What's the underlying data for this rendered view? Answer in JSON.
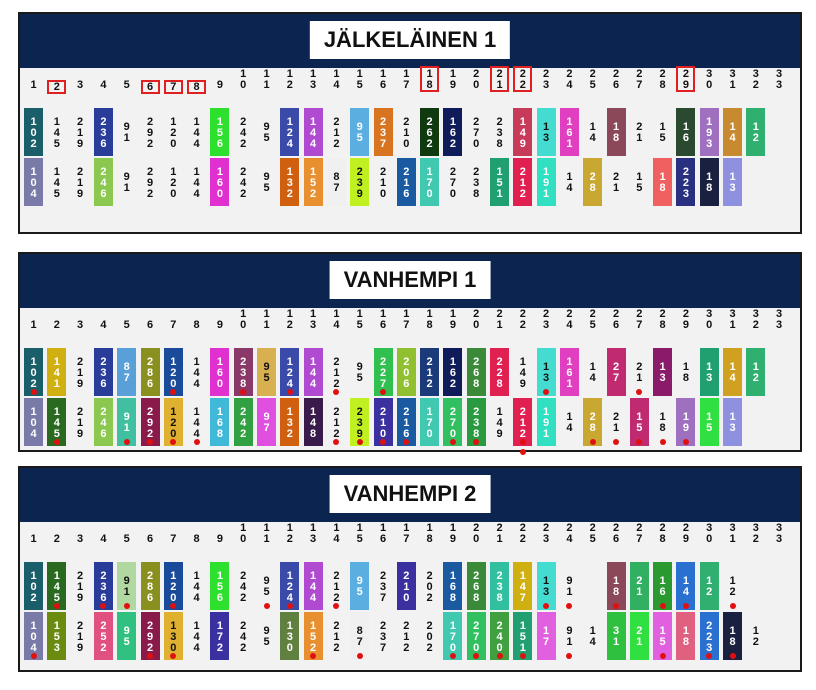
{
  "panels": [
    {
      "title": "JÄLKELÄINEN 1",
      "headers": [
        "1",
        "2",
        "3",
        "4",
        "5",
        "6",
        "7",
        "8",
        "9",
        "10",
        "11",
        "12",
        "13",
        "14",
        "15",
        "16",
        "17",
        "18",
        "19",
        "20",
        "21",
        "22",
        "23",
        "24",
        "25",
        "26",
        "27",
        "28",
        "29",
        "30",
        "31",
        "32",
        "33"
      ],
      "boxed": [
        2,
        6,
        7,
        8,
        18,
        21,
        22,
        29
      ],
      "row1": [
        {
          "t": "102",
          "c": "#1a5e6a"
        },
        {
          "t": "145",
          "c": ""
        },
        {
          "t": "219",
          "c": ""
        },
        {
          "t": "236",
          "c": "#2a3c9a"
        },
        {
          "t": "91",
          "c": ""
        },
        {
          "t": "292",
          "c": ""
        },
        {
          "t": "120",
          "c": ""
        },
        {
          "t": "144",
          "c": ""
        },
        {
          "t": "156",
          "c": "#2ee02e"
        },
        {
          "t": "242",
          "c": ""
        },
        {
          "t": "95",
          "c": ""
        },
        {
          "t": "124",
          "c": "#3a4aa8"
        },
        {
          "t": "144",
          "c": "#b04ad0"
        },
        {
          "t": "212",
          "c": ""
        },
        {
          "t": "95",
          "c": "#5aaee0"
        },
        {
          "t": "237",
          "c": "#d87420"
        },
        {
          "t": "210",
          "c": ""
        },
        {
          "t": "262",
          "c": "#0f3a10"
        },
        {
          "t": "162",
          "c": "#101c5a"
        },
        {
          "t": "270",
          "c": ""
        },
        {
          "t": "238",
          "c": ""
        },
        {
          "t": "149",
          "c": "#c83a5a"
        },
        {
          "t": "13",
          "c": "#44dcd0"
        },
        {
          "t": "161",
          "c": "#e040c0"
        },
        {
          "t": "14",
          "c": ""
        },
        {
          "t": "18",
          "c": "#8a4858"
        },
        {
          "t": "21",
          "c": ""
        },
        {
          "t": "15",
          "c": ""
        },
        {
          "t": "16",
          "c": "#2a4a30"
        },
        {
          "t": "193",
          "c": "#a070c0"
        },
        {
          "t": "14",
          "c": "#c88a30"
        },
        {
          "t": "12",
          "c": "#30b070"
        },
        {
          "t": "",
          "c": ""
        }
      ],
      "row2": [
        {
          "t": "104",
          "c": "#7a7aa8"
        },
        {
          "t": "145",
          "c": ""
        },
        {
          "t": "219",
          "c": ""
        },
        {
          "t": "246",
          "c": "#8ac850"
        },
        {
          "t": "91",
          "c": ""
        },
        {
          "t": "292",
          "c": ""
        },
        {
          "t": "120",
          "c": ""
        },
        {
          "t": "144",
          "c": ""
        },
        {
          "t": "160",
          "c": "#e030d0"
        },
        {
          "t": "242",
          "c": ""
        },
        {
          "t": "95",
          "c": ""
        },
        {
          "t": "132",
          "c": "#d06010"
        },
        {
          "t": "152",
          "c": "#e89030"
        },
        {
          "t": "87",
          "c": "#f0f0f0"
        },
        {
          "t": "239",
          "c": "#c0f020"
        },
        {
          "t": "210",
          "c": ""
        },
        {
          "t": "216",
          "c": "#1a5aa0"
        },
        {
          "t": "170",
          "c": "#40c8b0"
        },
        {
          "t": "270",
          "c": ""
        },
        {
          "t": "238",
          "c": ""
        },
        {
          "t": "151",
          "c": "#20a070"
        },
        {
          "t": "212",
          "c": "#e02050"
        },
        {
          "t": "191",
          "c": "#30e0c0"
        },
        {
          "t": "14",
          "c": ""
        },
        {
          "t": "28",
          "c": "#c8a830"
        },
        {
          "t": "21",
          "c": ""
        },
        {
          "t": "15",
          "c": ""
        },
        {
          "t": "18",
          "c": "#f06060"
        },
        {
          "t": "223",
          "c": "#2a3080"
        },
        {
          "t": "18",
          "c": "#1a2040"
        },
        {
          "t": "13",
          "c": "#9090e0"
        },
        {
          "t": "",
          "c": ""
        },
        {
          "t": "",
          "c": ""
        }
      ],
      "dots1": [],
      "dots2": []
    },
    {
      "title": "VANHEMPI 1",
      "headers": [
        "1",
        "2",
        "3",
        "4",
        "5",
        "6",
        "7",
        "8",
        "9",
        "10",
        "11",
        "12",
        "13",
        "14",
        "15",
        "16",
        "17",
        "18",
        "19",
        "20",
        "21",
        "22",
        "23",
        "24",
        "25",
        "26",
        "27",
        "28",
        "29",
        "30",
        "31",
        "32",
        "33"
      ],
      "boxed": [],
      "row1": [
        {
          "t": "102",
          "c": "#1a5e6a"
        },
        {
          "t": "141",
          "c": "#d0b010"
        },
        {
          "t": "219",
          "c": ""
        },
        {
          "t": "236",
          "c": "#2a3c9a"
        },
        {
          "t": "87",
          "c": "#5aa0d8"
        },
        {
          "t": "286",
          "c": "#8a9020"
        },
        {
          "t": "120",
          "c": "#1a4a9a"
        },
        {
          "t": "144",
          "c": ""
        },
        {
          "t": "160",
          "c": "#e030d0"
        },
        {
          "t": "238",
          "c": "#8a3868"
        },
        {
          "t": "95",
          "c": "#d8b050"
        },
        {
          "t": "124",
          "c": "#3a4aa8"
        },
        {
          "t": "144",
          "c": "#b04ad0"
        },
        {
          "t": "212",
          "c": ""
        },
        {
          "t": "95",
          "c": ""
        },
        {
          "t": "227",
          "c": "#30c050"
        },
        {
          "t": "206",
          "c": "#90c030"
        },
        {
          "t": "212",
          "c": "#1a3a7a"
        },
        {
          "t": "162",
          "c": "#101c5a"
        },
        {
          "t": "268",
          "c": "#3a8a3a"
        },
        {
          "t": "228",
          "c": "#e02050"
        },
        {
          "t": "149",
          "c": ""
        },
        {
          "t": "13",
          "c": "#44dcd0"
        },
        {
          "t": "161",
          "c": "#e040c0"
        },
        {
          "t": "14",
          "c": ""
        },
        {
          "t": "27",
          "c": "#c02a70"
        },
        {
          "t": "21",
          "c": ""
        },
        {
          "t": "13",
          "c": "#8a1a6a"
        },
        {
          "t": "18",
          "c": ""
        },
        {
          "t": "13",
          "c": "#20a070"
        },
        {
          "t": "14",
          "c": "#d0a020"
        },
        {
          "t": "12",
          "c": "#30b070"
        },
        {
          "t": "",
          "c": ""
        }
      ],
      "row2": [
        {
          "t": "104",
          "c": "#7a7aa8"
        },
        {
          "t": "145",
          "c": "#2a6a20"
        },
        {
          "t": "219",
          "c": ""
        },
        {
          "t": "246",
          "c": "#8ac850"
        },
        {
          "t": "91",
          "c": "#40c0a0"
        },
        {
          "t": "292",
          "c": "#8a1a4a"
        },
        {
          "t": "120",
          "c": "#e0b030"
        },
        {
          "t": "144",
          "c": ""
        },
        {
          "t": "168",
          "c": "#40b8d8"
        },
        {
          "t": "242",
          "c": "#30a040"
        },
        {
          "t": "97",
          "c": "#e050e0"
        },
        {
          "t": "132",
          "c": "#d06010"
        },
        {
          "t": "148",
          "c": "#3a1a4a"
        },
        {
          "t": "212",
          "c": ""
        },
        {
          "t": "239",
          "c": "#c0f020"
        },
        {
          "t": "210",
          "c": "#3a30a0"
        },
        {
          "t": "216",
          "c": "#1a5aa0"
        },
        {
          "t": "170",
          "c": "#40c8b0"
        },
        {
          "t": "270",
          "c": "#30c060"
        },
        {
          "t": "238",
          "c": "#2a9a40"
        },
        {
          "t": "149",
          "c": ""
        },
        {
          "t": "212",
          "c": "#e02050"
        },
        {
          "t": "191",
          "c": "#30e0c0"
        },
        {
          "t": "14",
          "c": ""
        },
        {
          "t": "28",
          "c": "#c8a830"
        },
        {
          "t": "21",
          "c": ""
        },
        {
          "t": "15",
          "c": "#c02a70"
        },
        {
          "t": "18",
          "c": ""
        },
        {
          "t": "19",
          "c": "#a070c0"
        },
        {
          "t": "15",
          "c": "#30e040"
        },
        {
          "t": "13",
          "c": "#9090e0"
        },
        {
          "t": "",
          "c": ""
        },
        {
          "t": "",
          "c": ""
        }
      ],
      "dots1": [
        0,
        6,
        9,
        11,
        13,
        15,
        22,
        26
      ],
      "dots2": [
        1,
        4,
        5,
        6,
        7,
        13,
        14,
        15,
        16,
        18,
        19,
        21,
        24,
        25,
        26,
        27,
        28
      ],
      "dots3": [
        21
      ]
    },
    {
      "title": "VANHEMPI 2",
      "headers": [
        "1",
        "2",
        "3",
        "4",
        "5",
        "6",
        "7",
        "8",
        "9",
        "10",
        "11",
        "12",
        "13",
        "14",
        "15",
        "16",
        "17",
        "18",
        "19",
        "20",
        "21",
        "22",
        "23",
        "24",
        "25",
        "26",
        "27",
        "28",
        "29",
        "30",
        "31",
        "32",
        "33"
      ],
      "boxed": [],
      "row1": [
        {
          "t": "102",
          "c": "#1a5e6a"
        },
        {
          "t": "145",
          "c": "#2a6a20"
        },
        {
          "t": "219",
          "c": ""
        },
        {
          "t": "236",
          "c": "#2a3c9a"
        },
        {
          "t": "91",
          "c": "#b0d8a0"
        },
        {
          "t": "286",
          "c": "#8a9020"
        },
        {
          "t": "120",
          "c": "#1a4a9a"
        },
        {
          "t": "144",
          "c": ""
        },
        {
          "t": "156",
          "c": "#2ee02e"
        },
        {
          "t": "242",
          "c": ""
        },
        {
          "t": "95",
          "c": ""
        },
        {
          "t": "124",
          "c": "#3a4aa8"
        },
        {
          "t": "144",
          "c": "#b04ad0"
        },
        {
          "t": "212",
          "c": ""
        },
        {
          "t": "95",
          "c": "#5aaee0"
        },
        {
          "t": "237",
          "c": ""
        },
        {
          "t": "210",
          "c": "#3a30a0"
        },
        {
          "t": "202",
          "c": ""
        },
        {
          "t": "168",
          "c": "#1a5aa0"
        },
        {
          "t": "268",
          "c": "#3a8a3a"
        },
        {
          "t": "238",
          "c": "#30c0a0"
        },
        {
          "t": "147",
          "c": "#d0b010"
        },
        {
          "t": "13",
          "c": "#44dcd0"
        },
        {
          "t": "91",
          "c": ""
        },
        {
          "t": "",
          "c": ""
        },
        {
          "t": "18",
          "c": "#8a4858"
        },
        {
          "t": "21",
          "c": "#30b060"
        },
        {
          "t": "16",
          "c": "#2a9a30"
        },
        {
          "t": "14",
          "c": "#2a70d0"
        },
        {
          "t": "12",
          "c": "#30b070"
        },
        {
          "t": "12",
          "c": ""
        },
        {
          "t": "",
          "c": ""
        },
        {
          "t": "",
          "c": ""
        }
      ],
      "row2": [
        {
          "t": "104",
          "c": "#7a7aa8"
        },
        {
          "t": "153",
          "c": "#6a8a10"
        },
        {
          "t": "219",
          "c": ""
        },
        {
          "t": "252",
          "c": "#e05080"
        },
        {
          "t": "95",
          "c": "#30c080"
        },
        {
          "t": "292",
          "c": "#8a1a4a"
        },
        {
          "t": "130",
          "c": "#e0b030"
        },
        {
          "t": "144",
          "c": ""
        },
        {
          "t": "172",
          "c": "#3a30a0"
        },
        {
          "t": "242",
          "c": ""
        },
        {
          "t": "95",
          "c": ""
        },
        {
          "t": "130",
          "c": "#608040"
        },
        {
          "t": "152",
          "c": "#e89030"
        },
        {
          "t": "212",
          "c": ""
        },
        {
          "t": "87",
          "c": "#f0f0f0"
        },
        {
          "t": "237",
          "c": ""
        },
        {
          "t": "212",
          "c": ""
        },
        {
          "t": "202",
          "c": ""
        },
        {
          "t": "170",
          "c": "#40c8b0"
        },
        {
          "t": "270",
          "c": "#30c060"
        },
        {
          "t": "240",
          "c": "#40a040"
        },
        {
          "t": "151",
          "c": "#20a070"
        },
        {
          "t": "17",
          "c": "#e060e0"
        },
        {
          "t": "91",
          "c": ""
        },
        {
          "t": "14",
          "c": ""
        },
        {
          "t": "31",
          "c": "#30c040"
        },
        {
          "t": "21",
          "c": "#30e040"
        },
        {
          "t": "15",
          "c": "#e060e0"
        },
        {
          "t": "18",
          "c": "#e06080"
        },
        {
          "t": "223",
          "c": "#2a70d0"
        },
        {
          "t": "18",
          "c": "#1a2040"
        },
        {
          "t": "12",
          "c": ""
        },
        {
          "t": "",
          "c": ""
        }
      ],
      "dots1": [
        1,
        3,
        4,
        6,
        10,
        11,
        13,
        22,
        23,
        25,
        27,
        28,
        30
      ],
      "dots2": [
        0,
        5,
        6,
        12,
        14,
        18,
        19,
        20,
        21,
        23,
        27,
        29,
        30
      ],
      "dots3": []
    }
  ]
}
